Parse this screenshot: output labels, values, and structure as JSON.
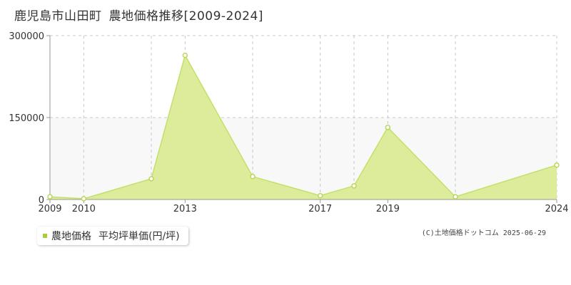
{
  "header": {
    "location": "鹿児島市山田町",
    "title": "農地価格推移[2009-2024]"
  },
  "legend": {
    "series_label": "農地価格",
    "unit_label": "平均坪単価(円/坪)"
  },
  "copyright": "(C)土地価格ドットコム 2025-06-29",
  "colors": {
    "fill": "#dcec9a",
    "line": "#c3e06a",
    "marker_stroke": "#b9d85a",
    "marker_fill": "#ffffff",
    "grid": "#c8c8c8",
    "axis": "#999999",
    "band": "#f8f8f8"
  },
  "chart_data": {
    "type": "area",
    "title": "鹿児島市山田町 農地価格推移[2009-2024]",
    "xlabel": "",
    "ylabel": "",
    "x": [
      2009,
      2010,
      2012,
      2013,
      2015,
      2017,
      2018,
      2019,
      2021,
      2024
    ],
    "xlim": [
      2009,
      2024
    ],
    "x_ticks": [
      2009,
      2010,
      2013,
      2017,
      2019,
      2024
    ],
    "x_gridlines": [
      2009,
      2010,
      2012,
      2013,
      2015,
      2017,
      2018,
      2019,
      2021,
      2024
    ],
    "ylim": [
      0,
      300000
    ],
    "y_ticks": [
      0,
      150000,
      300000
    ],
    "grid": true,
    "legend_position": "bottom-left",
    "series": [
      {
        "name": "農地価格 平均坪単価(円/坪)",
        "values": [
          5000,
          1500,
          38000,
          264000,
          42000,
          7000,
          25000,
          132000,
          5000,
          63000
        ]
      }
    ]
  }
}
